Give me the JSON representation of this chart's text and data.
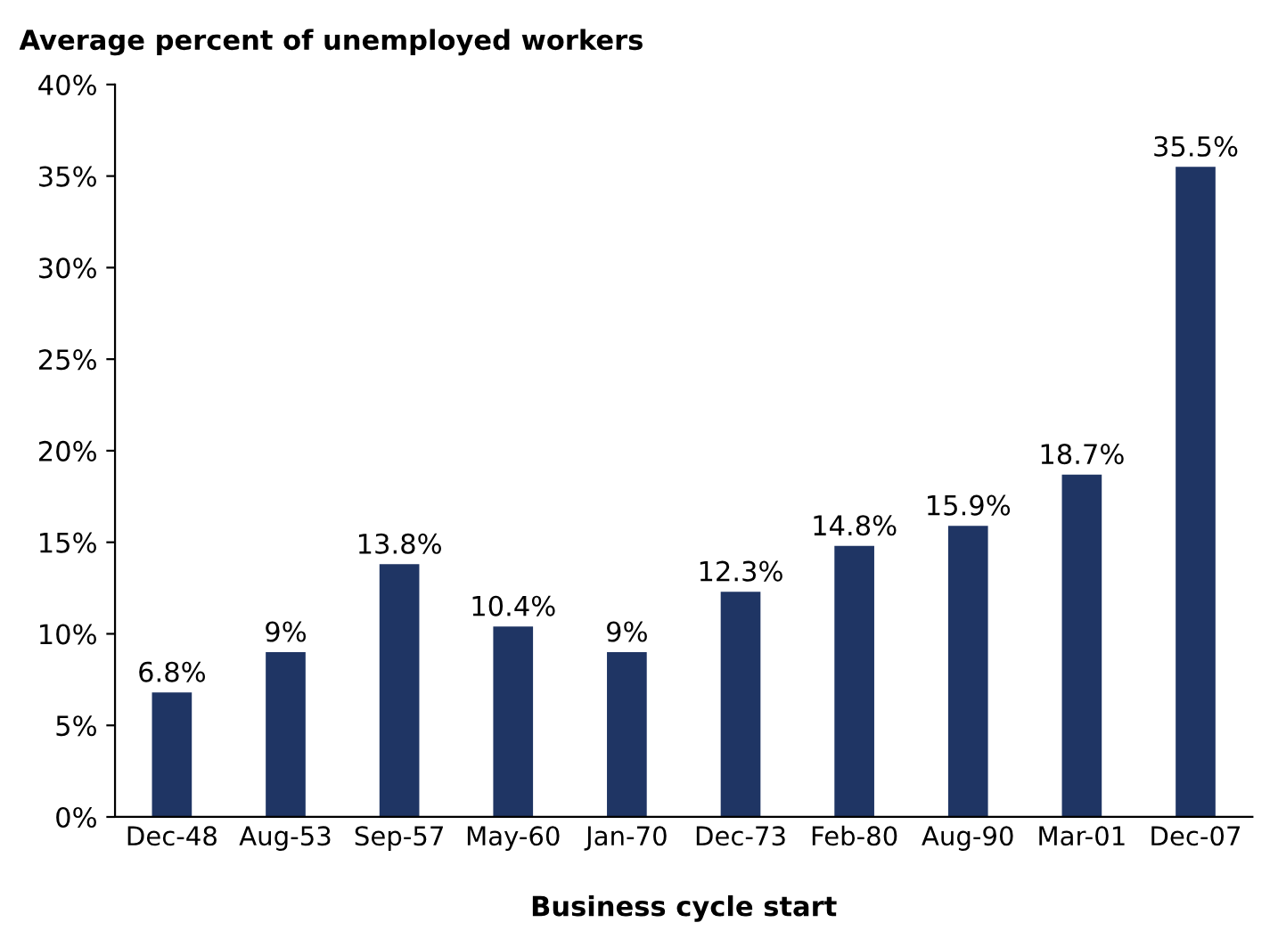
{
  "chart_data": {
    "type": "bar",
    "title": "Average percent of unemployed workers",
    "xlabel": "Business cycle start",
    "categories": [
      "Dec-48",
      "Aug-53",
      "Sep-57",
      "May-60",
      "Jan-70",
      "Dec-73",
      "Feb-80",
      "Aug-90",
      "Mar-01",
      "Dec-07"
    ],
    "values": [
      6.8,
      9,
      13.8,
      10.4,
      9,
      12.3,
      14.8,
      15.9,
      18.7,
      35.5
    ],
    "value_labels": [
      "6.8%",
      "9%",
      "13.8%",
      "10.4%",
      "9%",
      "12.3%",
      "14.8%",
      "15.9%",
      "18.7%",
      "35.5%"
    ],
    "color": "#1f3564",
    "ylim": [
      0,
      40
    ],
    "yticks": [
      {
        "value": 0,
        "label": "0%"
      },
      {
        "value": 5,
        "label": "5%"
      },
      {
        "value": 10,
        "label": "10%"
      },
      {
        "value": 15,
        "label": "15%"
      },
      {
        "value": 20,
        "label": "20%"
      },
      {
        "value": 25,
        "label": "25%"
      },
      {
        "value": 30,
        "label": "30%"
      },
      {
        "value": 35,
        "label": "35%"
      },
      {
        "value": 40,
        "label": "40%"
      }
    ],
    "grid": false,
    "legend": false
  }
}
